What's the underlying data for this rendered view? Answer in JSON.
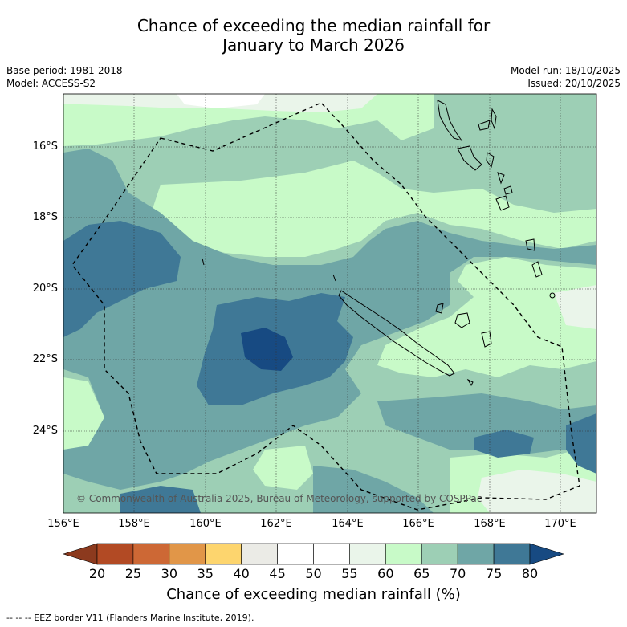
{
  "title": {
    "line1": "Chance of exceeding the median rainfall for",
    "line2": "January to March 2026"
  },
  "meta": {
    "base_period": "Base period: 1981-2018",
    "model": "Model: ACCESS-S2",
    "model_run": "Model run: 18/10/2025",
    "issued": "Issued: 20/10/2025"
  },
  "map": {
    "lat_labels": [
      "16°S",
      "18°S",
      "20°S",
      "22°S",
      "24°S"
    ],
    "lon_labels": [
      "156°E",
      "158°E",
      "160°E",
      "162°E",
      "164°E",
      "166°E",
      "168°E",
      "170°E"
    ],
    "copyright": "© Commonwealth of Australia 2025, Bureau of Meteorology, supported by COSPPac"
  },
  "colorbar": {
    "ticks": [
      "20",
      "25",
      "30",
      "35",
      "40",
      "45",
      "50",
      "55",
      "60",
      "65",
      "70",
      "75",
      "80"
    ],
    "colors": [
      "#8c3a1e",
      "#b24a24",
      "#cd6835",
      "#e19648",
      "#fdd56e",
      "#ebebe6",
      "#ffffff",
      "#ffffff",
      "#eaf5ea",
      "#c8fac8",
      "#9dcfb5",
      "#6fa6a6",
      "#3f7896",
      "#174a82"
    ],
    "label": "Chance of exceeding median rainfall (%)"
  },
  "footer": "-- -- -- EEZ border V11 (Flanders Marine Institute, 2019)."
}
